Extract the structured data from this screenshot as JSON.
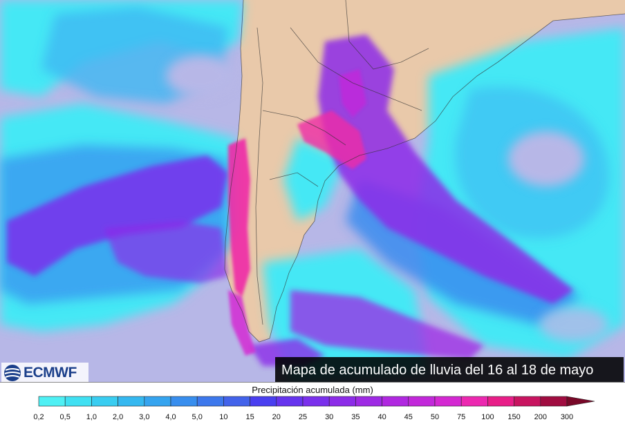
{
  "caption": "Mapa de acumulado de lluvia del 16 al 18 de mayo",
  "logo": {
    "text": "ECMWF"
  },
  "legend": {
    "title": "Precipitación acumulada (mm)",
    "labels": [
      "0,2",
      "0,5",
      "1,0",
      "2,0",
      "3,0",
      "4,0",
      "5,0",
      "10",
      "15",
      "20",
      "25",
      "30",
      "35",
      "40",
      "45",
      "50",
      "75",
      "100",
      "150",
      "200",
      "300"
    ],
    "colors": [
      "#4ff0f4",
      "#40e0f2",
      "#39cdf1",
      "#35b8f0",
      "#35a4ef",
      "#388eee",
      "#3d78ec",
      "#4363ea",
      "#4a3ff0",
      "#6634ee",
      "#7a30ec",
      "#8c2ce8",
      "#9e2ae4",
      "#b028e0",
      "#c228da",
      "#d428d2",
      "#ec28b0",
      "#e81e88",
      "#c81460",
      "#a00c40",
      "#780828"
    ]
  },
  "colors": {
    "ocean": "#b7b7e7",
    "land": "#e9c9aa",
    "light_rain": "#45e8f5",
    "medium_rain": "#3a9cf0",
    "heavy_rain": "#9a2de6",
    "extreme_rain": "#ee2aa6"
  }
}
